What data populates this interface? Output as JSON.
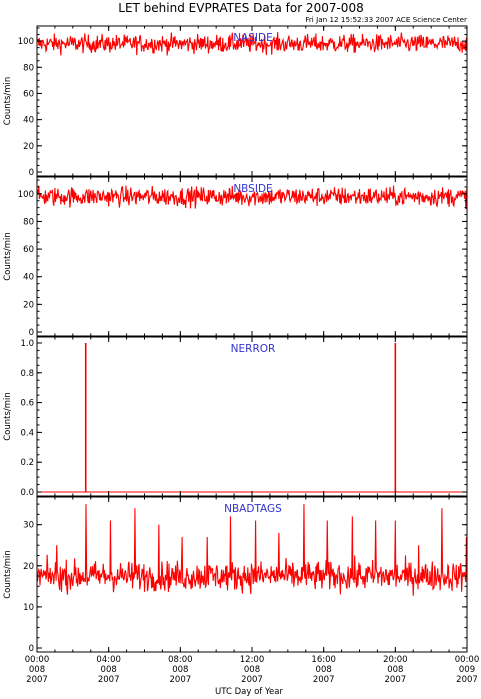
{
  "header": {
    "title": "LET behind EVPRATES Data for 2007-008",
    "stamp": "Fri Jan 12 15:52:33 2007 ACE Science Center"
  },
  "colors": {
    "series": "#ff0000",
    "panel_label": "#3333cc",
    "axes": "#000000"
  },
  "chart_data": [
    {
      "type": "line",
      "name": "NASIDE",
      "ylabel": "Counts/min",
      "ylim": [
        0,
        110
      ],
      "yticks": [
        "0",
        "20",
        "40",
        "60",
        "80",
        "100"
      ],
      "profile": {
        "mean": 98,
        "spread": 3.5,
        "min": 89,
        "max": 107
      }
    },
    {
      "type": "line",
      "name": "NBSIDE",
      "ylabel": "Counts/min",
      "ylim": [
        0,
        110
      ],
      "yticks": [
        "0",
        "20",
        "40",
        "60",
        "80",
        "100"
      ],
      "profile": {
        "mean": 98,
        "spread": 3.5,
        "min": 88,
        "max": 106
      }
    },
    {
      "type": "line",
      "name": "NERROR",
      "ylabel": "Counts/min",
      "ylim": [
        0,
        1.02
      ],
      "yticks": [
        "0.0",
        "0.2",
        "0.4",
        "0.6",
        "0.8",
        "1.0"
      ],
      "baseline": 0,
      "spikes": [
        {
          "x_hours": 2.72,
          "value": 1.0
        },
        {
          "x_hours": 20.0,
          "value": 1.0
        }
      ]
    },
    {
      "type": "line",
      "name": "NBADTAGS",
      "ylabel": "Counts/min",
      "ylim": [
        0,
        36
      ],
      "yticks": [
        "0",
        "10",
        "20",
        "30"
      ],
      "profile": {
        "mean": 17.5,
        "spread": 1.8,
        "min": 10,
        "max": 24
      },
      "spikes": [
        {
          "x_hours": 1.1,
          "value": 25
        },
        {
          "x_hours": 2.72,
          "value": 35
        },
        {
          "x_hours": 4.1,
          "value": 31
        },
        {
          "x_hours": 5.45,
          "value": 34
        },
        {
          "x_hours": 6.8,
          "value": 30
        },
        {
          "x_hours": 8.1,
          "value": 27
        },
        {
          "x_hours": 9.5,
          "value": 27
        },
        {
          "x_hours": 10.8,
          "value": 32
        },
        {
          "x_hours": 12.2,
          "value": 31
        },
        {
          "x_hours": 13.5,
          "value": 28
        },
        {
          "x_hours": 14.9,
          "value": 35
        },
        {
          "x_hours": 16.2,
          "value": 31
        },
        {
          "x_hours": 17.6,
          "value": 32
        },
        {
          "x_hours": 18.9,
          "value": 31
        },
        {
          "x_hours": 20.0,
          "value": 31
        },
        {
          "x_hours": 21.3,
          "value": 25
        },
        {
          "x_hours": 22.6,
          "value": 34
        },
        {
          "x_hours": 23.95,
          "value": 27
        }
      ]
    }
  ],
  "x_axis": {
    "xlabel": "UTC Day of Year",
    "range_hours": [
      0,
      24
    ],
    "ticks": [
      {
        "time": "00:00",
        "doy": "008",
        "year": "2007"
      },
      {
        "time": "04:00",
        "doy": "008",
        "year": "2007"
      },
      {
        "time": "08:00",
        "doy": "008",
        "year": "2007"
      },
      {
        "time": "12:00",
        "doy": "008",
        "year": "2007"
      },
      {
        "time": "16:00",
        "doy": "008",
        "year": "2007"
      },
      {
        "time": "20:00",
        "doy": "008",
        "year": "2007"
      },
      {
        "time": "00:00",
        "doy": "009",
        "year": "2007"
      }
    ]
  }
}
